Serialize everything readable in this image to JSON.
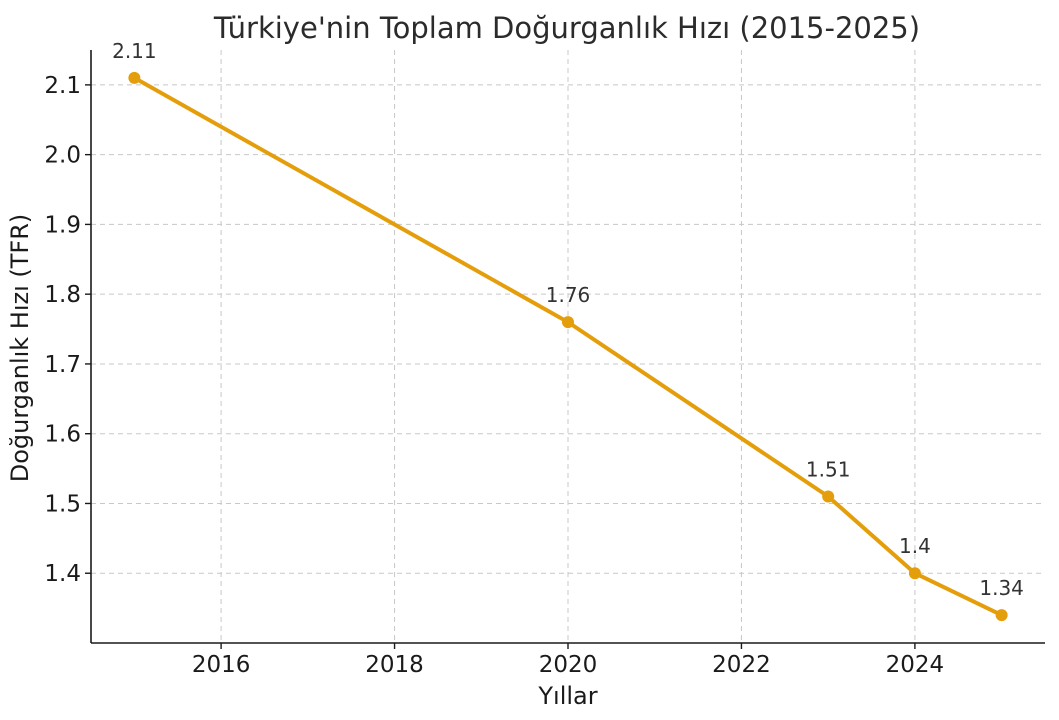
{
  "chart_data": {
    "type": "line",
    "title": "Türkiye'nin Toplam Doğurganlık Hızı (2015-2025)",
    "xlabel": "Yıllar",
    "ylabel": "Doğurganlık Hızı (TFR)",
    "x": [
      2015,
      2020,
      2023,
      2024,
      2025
    ],
    "values": [
      2.11,
      1.76,
      1.51,
      1.4,
      1.34
    ],
    "data_labels": [
      "2.11",
      "1.76",
      "1.51",
      "1.4",
      "1.34"
    ],
    "xlim": [
      2014.5,
      2025.5
    ],
    "ylim": [
      1.3,
      2.15
    ],
    "x_ticks": [
      2016,
      2018,
      2020,
      2022,
      2024
    ],
    "x_tick_labels": [
      "2016",
      "2018",
      "2020",
      "2022",
      "2024"
    ],
    "y_ticks": [
      1.4,
      1.5,
      1.6,
      1.7,
      1.8,
      1.9,
      2.0,
      2.1
    ],
    "y_tick_labels": [
      "1.4",
      "1.5",
      "1.6",
      "1.7",
      "1.8",
      "1.9",
      "2.0",
      "2.1"
    ],
    "grid": true,
    "legend": "none",
    "line_color": "#E59E0B",
    "grid_color": "#c8c8c8",
    "axis_color": "#1a1a1a"
  }
}
